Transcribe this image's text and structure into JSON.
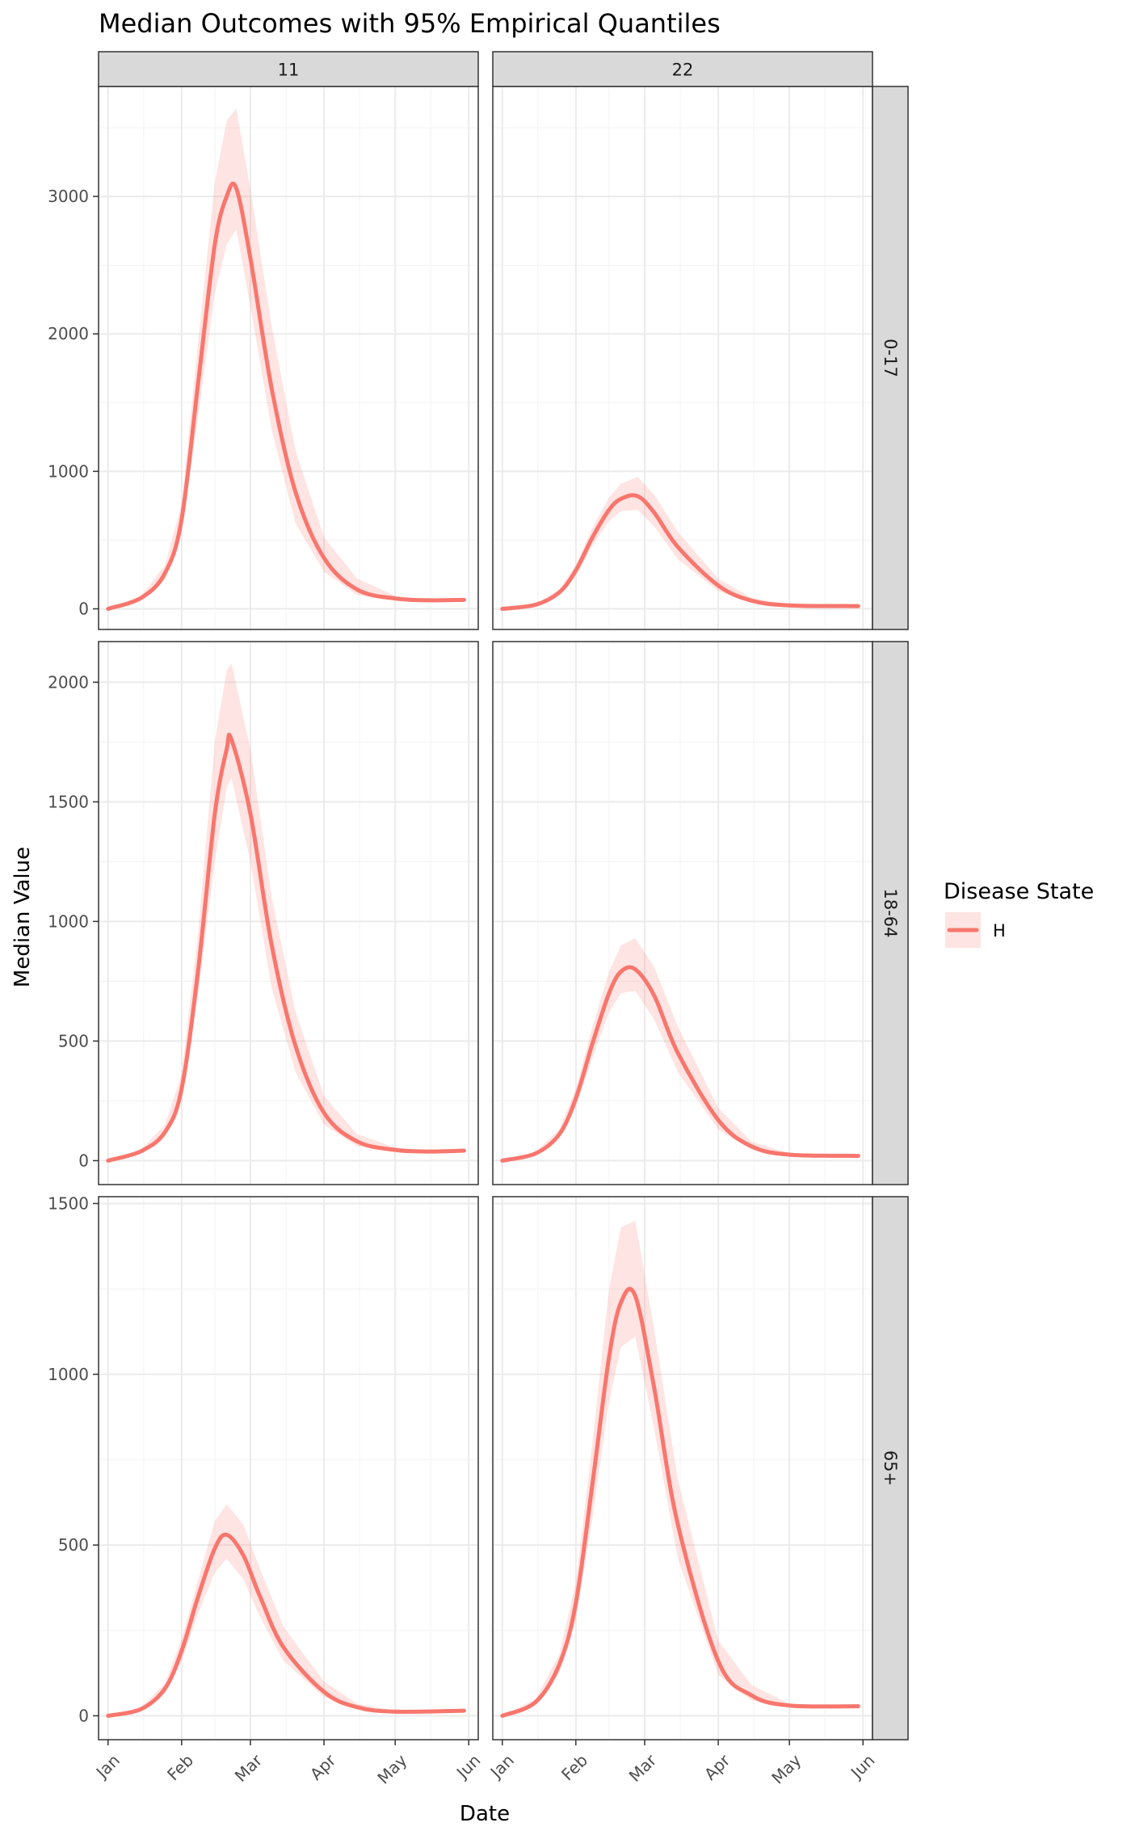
{
  "chart_data": {
    "type": "line",
    "title": "Median Outcomes with 95% Empirical Quantiles",
    "xlabel": "Date",
    "ylabel": "Median Value",
    "x_ticks": [
      "Jan",
      "Feb",
      "Mar",
      "Apr",
      "May",
      "Jun"
    ],
    "x_tick_dates": [
      "2020-01-01",
      "2020-02-01",
      "2020-03-01",
      "2020-04-01",
      "2020-05-01",
      "2020-06-01"
    ],
    "xlim": [
      "2019-12-28",
      "2020-06-05"
    ],
    "columns": [
      "11",
      "22"
    ],
    "rows": [
      "0-17",
      "18-64",
      "65+"
    ],
    "row_ylim": [
      [
        -150,
        3800
      ],
      [
        -100,
        2170
      ],
      [
        -70,
        1520
      ]
    ],
    "row_yticks": [
      [
        0,
        1000,
        2000,
        3000
      ],
      [
        0,
        500,
        1000,
        1500,
        2000
      ],
      [
        0,
        500,
        1000,
        1500
      ]
    ],
    "legend": {
      "title": "Disease State",
      "entries": [
        "H"
      ],
      "position": "right"
    },
    "grid": true,
    "facet_grid": "rows x columns",
    "colors": {
      "line": "#f8766d",
      "ribbon": "#f8766d"
    },
    "panels": [
      {
        "row": "0-17",
        "column": "11",
        "x": [
          "2020-01-01",
          "2020-01-15",
          "2020-01-25",
          "2020-02-01",
          "2020-02-08",
          "2020-02-15",
          "2020-02-20",
          "2020-02-24",
          "2020-03-01",
          "2020-03-10",
          "2020-03-20",
          "2020-04-01",
          "2020-04-15",
          "2020-05-01",
          "2020-05-15",
          "2020-05-30"
        ],
        "median": [
          0,
          80,
          260,
          650,
          1650,
          2650,
          3000,
          3060,
          2550,
          1600,
          850,
          370,
          140,
          75,
          62,
          65
        ],
        "lower": [
          0,
          65,
          210,
          560,
          1400,
          2300,
          2650,
          2760,
          2200,
          1300,
          620,
          270,
          100,
          68,
          60,
          62
        ],
        "upper": [
          0,
          95,
          320,
          760,
          1950,
          3100,
          3550,
          3640,
          3050,
          2050,
          1150,
          520,
          220,
          95,
          70,
          70
        ]
      },
      {
        "row": "0-17",
        "column": "22",
        "x": [
          "2020-01-01",
          "2020-01-15",
          "2020-01-25",
          "2020-02-01",
          "2020-02-08",
          "2020-02-15",
          "2020-02-20",
          "2020-02-27",
          "2020-03-05",
          "2020-03-15",
          "2020-04-01",
          "2020-04-15",
          "2020-05-01",
          "2020-05-30"
        ],
        "median": [
          0,
          30,
          120,
          280,
          520,
          720,
          800,
          820,
          700,
          450,
          170,
          60,
          25,
          20
        ],
        "lower": [
          0,
          25,
          100,
          240,
          460,
          640,
          710,
          720,
          600,
          360,
          130,
          45,
          20,
          18
        ],
        "upper": [
          0,
          35,
          140,
          320,
          590,
          810,
          910,
          960,
          830,
          560,
          220,
          80,
          30,
          22
        ]
      },
      {
        "row": "18-64",
        "column": "11",
        "x": [
          "2020-01-01",
          "2020-01-15",
          "2020-01-25",
          "2020-02-01",
          "2020-02-08",
          "2020-02-15",
          "2020-02-20",
          "2020-02-22",
          "2020-03-01",
          "2020-03-10",
          "2020-03-20",
          "2020-04-01",
          "2020-04-15",
          "2020-05-01",
          "2020-05-15",
          "2020-05-30"
        ],
        "median": [
          0,
          40,
          120,
          300,
          800,
          1450,
          1720,
          1760,
          1450,
          900,
          480,
          200,
          80,
          45,
          38,
          42
        ],
        "lower": [
          0,
          32,
          100,
          260,
          700,
          1250,
          1560,
          1600,
          1250,
          720,
          370,
          150,
          60,
          40,
          36,
          40
        ],
        "upper": [
          0,
          48,
          150,
          360,
          960,
          1750,
          2050,
          2080,
          1720,
          1100,
          620,
          270,
          110,
          55,
          42,
          44
        ]
      },
      {
        "row": "18-64",
        "column": "22",
        "x": [
          "2020-01-01",
          "2020-01-15",
          "2020-01-25",
          "2020-02-01",
          "2020-02-08",
          "2020-02-15",
          "2020-02-20",
          "2020-02-26",
          "2020-03-05",
          "2020-03-15",
          "2020-04-01",
          "2020-04-15",
          "2020-05-01",
          "2020-05-30"
        ],
        "median": [
          0,
          30,
          110,
          260,
          490,
          700,
          790,
          800,
          690,
          450,
          170,
          60,
          25,
          20
        ],
        "lower": [
          0,
          25,
          95,
          225,
          430,
          620,
          700,
          710,
          590,
          370,
          130,
          45,
          20,
          18
        ],
        "upper": [
          0,
          35,
          130,
          300,
          560,
          790,
          900,
          930,
          810,
          560,
          220,
          80,
          30,
          22
        ]
      },
      {
        "row": "65+",
        "column": "11",
        "x": [
          "2020-01-01",
          "2020-01-15",
          "2020-01-25",
          "2020-02-01",
          "2020-02-08",
          "2020-02-15",
          "2020-02-20",
          "2020-02-27",
          "2020-03-05",
          "2020-03-15",
          "2020-04-01",
          "2020-04-15",
          "2020-05-01",
          "2020-05-30"
        ],
        "median": [
          0,
          20,
          80,
          190,
          350,
          490,
          530,
          470,
          350,
          200,
          70,
          25,
          12,
          15
        ],
        "lower": [
          0,
          16,
          65,
          160,
          300,
          420,
          460,
          400,
          290,
          160,
          55,
          20,
          10,
          13
        ],
        "upper": [
          0,
          24,
          95,
          225,
          400,
          570,
          620,
          560,
          430,
          260,
          100,
          35,
          15,
          17
        ]
      },
      {
        "row": "65+",
        "column": "22",
        "x": [
          "2020-01-01",
          "2020-01-15",
          "2020-01-25",
          "2020-02-01",
          "2020-02-08",
          "2020-02-15",
          "2020-02-20",
          "2020-02-26",
          "2020-03-05",
          "2020-03-15",
          "2020-04-01",
          "2020-04-15",
          "2020-05-01",
          "2020-05-30"
        ],
        "median": [
          0,
          40,
          150,
          330,
          680,
          1050,
          1210,
          1230,
          960,
          560,
          160,
          60,
          30,
          28
        ],
        "lower": [
          0,
          32,
          125,
          280,
          580,
          920,
          1080,
          1110,
          840,
          460,
          120,
          45,
          27,
          26
        ],
        "upper": [
          0,
          48,
          180,
          390,
          800,
          1250,
          1430,
          1450,
          1130,
          690,
          220,
          90,
          35,
          30
        ]
      }
    ]
  }
}
